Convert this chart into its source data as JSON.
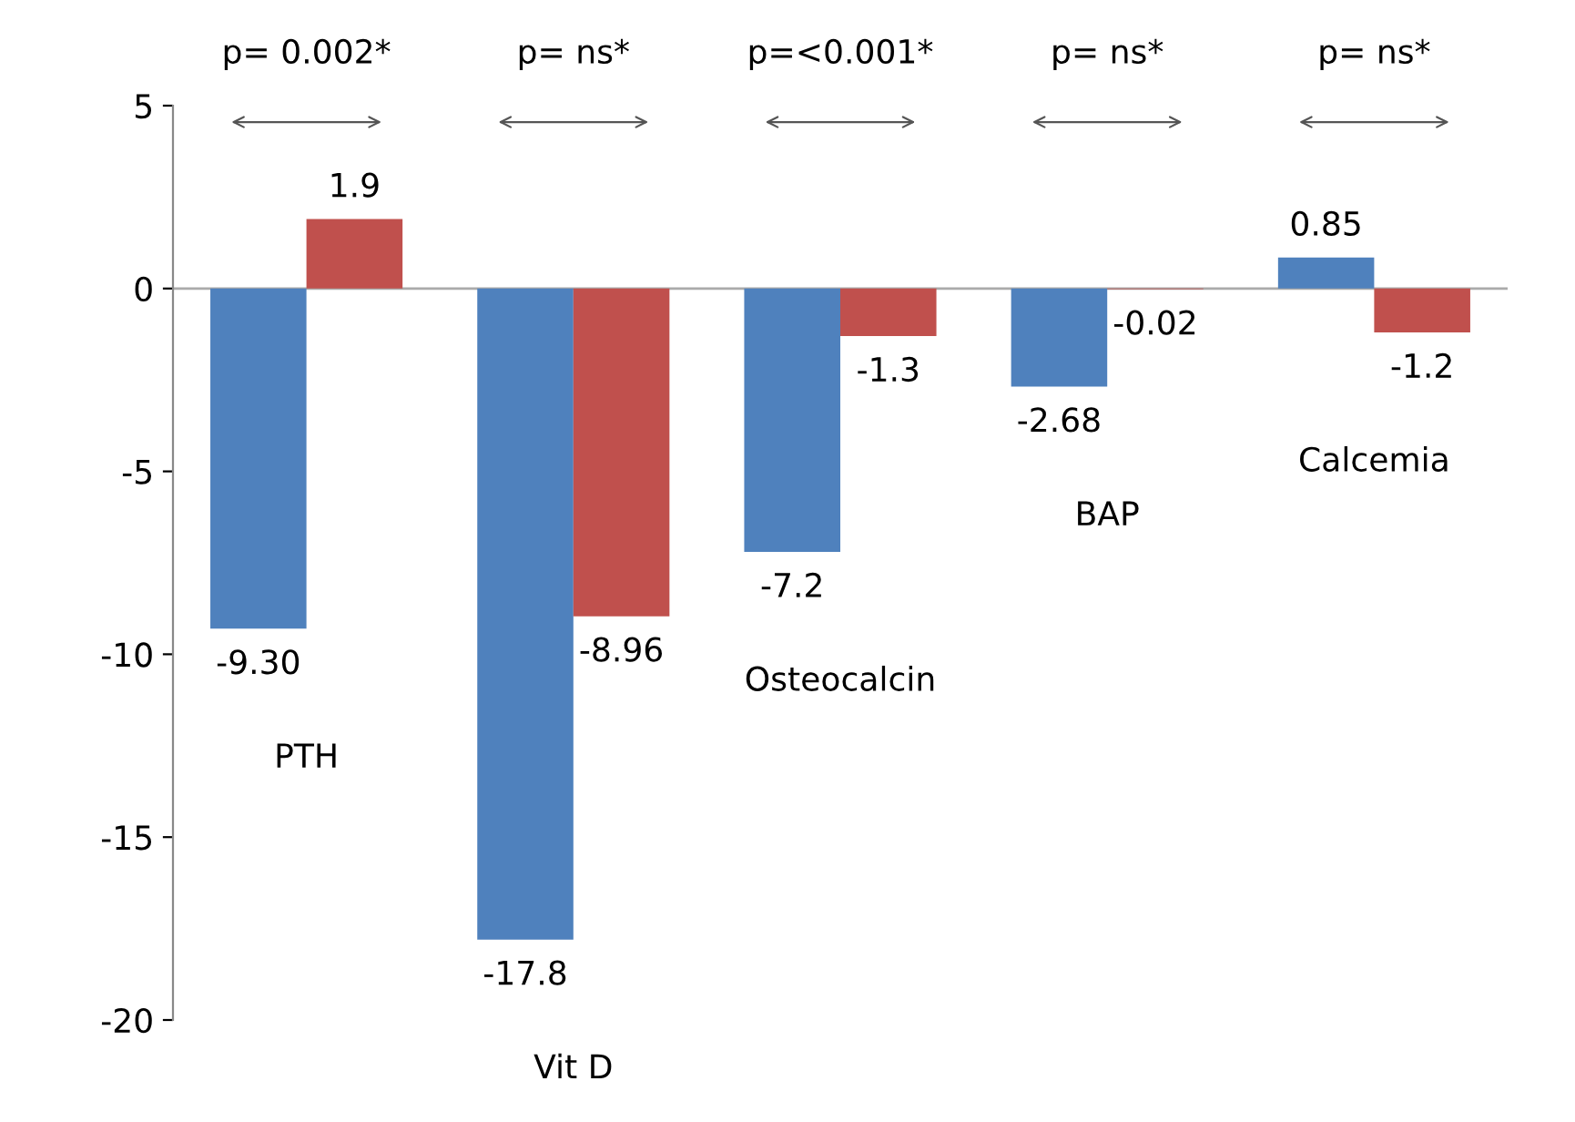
{
  "chart_data": {
    "type": "bar",
    "categories": [
      "PTH",
      "Vit D",
      "Osteocalcin",
      "BAP",
      "Calcemia"
    ],
    "series": [
      {
        "color": "#4f81bd",
        "values": [
          -9.3,
          -17.8,
          -7.2,
          -2.68,
          0.85
        ],
        "value_labels": [
          "-9.30",
          "-17.8",
          "-7.2",
          "-2.68",
          "0.85"
        ]
      },
      {
        "color": "#c0504d",
        "values": [
          1.9,
          -8.96,
          -1.3,
          -0.02,
          -1.2
        ],
        "value_labels": [
          "1.9",
          "-8.96",
          "-1.3",
          "-0.02",
          "-1.2"
        ]
      }
    ],
    "annotations": [
      "p= 0.002*",
      "p= ns*",
      "p=<0.001*",
      "p= ns*",
      "p= ns*"
    ],
    "ylim": [
      -20,
      5
    ],
    "yticks": [
      -20,
      -15,
      -10,
      -5,
      0,
      5
    ],
    "ref_lines": [
      {
        "axis": "y",
        "value": 0,
        "color": "#aaaaaa"
      }
    ],
    "tick_labels": "y",
    "grid": false,
    "legend": false
  }
}
